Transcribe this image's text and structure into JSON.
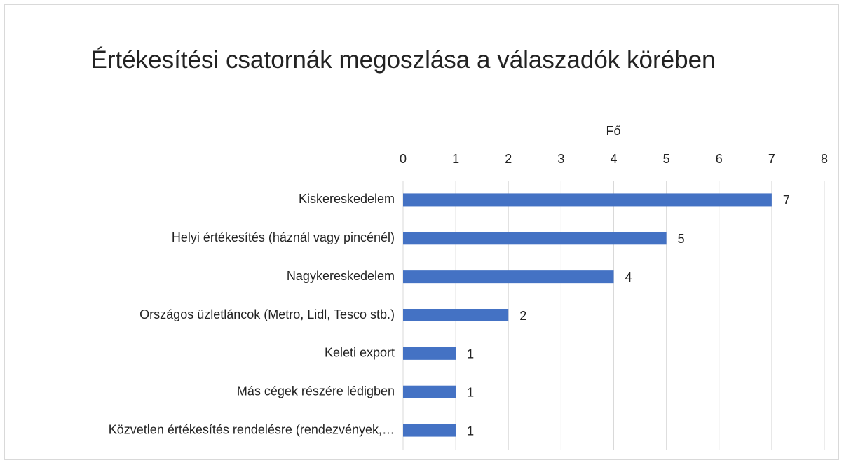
{
  "chart_data": {
    "type": "barh",
    "title": "Értékesítési csatornák megoszlása a válaszadók körében",
    "x_label": "Fő",
    "categories": [
      "Kiskereskedelem",
      "Helyi értékesítés (háznál vagy pincénél)",
      "Nagykereskedelem",
      "Országos üzletláncok (Metro, Lidl, Tesco stb.)",
      "Keleti export",
      "Más cégek részére lédigben",
      "Közvetlen értékesítés rendelésre (rendezvények,…"
    ],
    "values": [
      7,
      5,
      4,
      2,
      1,
      1,
      1
    ],
    "color": "#4472c4",
    "xlim": [
      0,
      8
    ],
    "xticks": [
      0,
      1,
      2,
      3,
      4,
      5,
      6,
      7,
      8
    ],
    "grid": true
  }
}
